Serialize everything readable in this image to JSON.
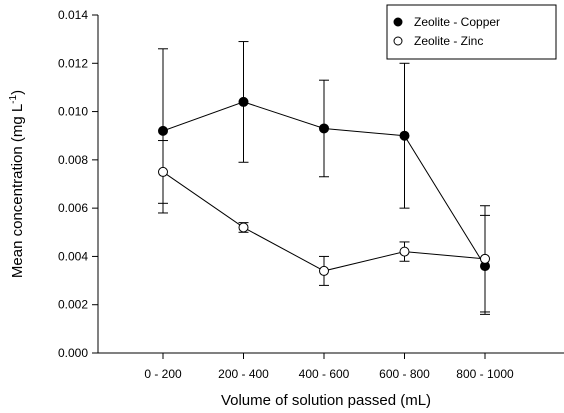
{
  "chart_data": {
    "type": "line",
    "xlabel": "Volume of solution passed (mL)",
    "ylabel": "Mean concentration (mg L",
    "ylabel_superscript": "-1",
    "ylabel_suffix": ")",
    "categories": [
      "0 - 200",
      "200 - 400",
      "400 - 600",
      "600 - 800",
      "800 - 1000"
    ],
    "ylim": [
      0,
      0.014
    ],
    "yticks": [
      "0.000",
      "0.002",
      "0.004",
      "0.006",
      "0.008",
      "0.010",
      "0.012",
      "0.014"
    ],
    "grid": false,
    "legend_position": "top-right",
    "series": [
      {
        "name": "Zeolite - Copper",
        "marker": "filled-circle",
        "values": [
          0.0092,
          0.0104,
          0.0093,
          0.009,
          0.0036
        ],
        "error_low": [
          0.0058,
          0.0079,
          0.0073,
          0.006,
          0.0016
        ],
        "error_high": [
          0.0126,
          0.0129,
          0.0113,
          0.012,
          0.0057
        ]
      },
      {
        "name": "Zeolite - Zinc",
        "marker": "open-circle",
        "values": [
          0.0075,
          0.0052,
          0.0034,
          0.0042,
          0.0039
        ],
        "error_low": [
          0.0062,
          0.005,
          0.0028,
          0.0038,
          0.0017
        ],
        "error_high": [
          0.0088,
          0.0054,
          0.004,
          0.0046,
          0.0061
        ]
      }
    ]
  }
}
